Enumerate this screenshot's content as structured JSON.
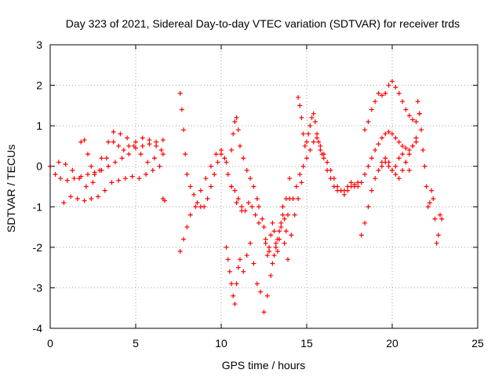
{
  "chart_data": {
    "type": "scatter",
    "title": "Day 323 of 2021, Sidereal Day-to-day VTEC variation (SDTVAR) for receiver trds",
    "xlabel": "GPS time / hours",
    "ylabel": "SDTVAR / TECUs",
    "xlim": [
      0,
      25
    ],
    "ylim": [
      -4,
      3
    ],
    "xticks": [
      0,
      5,
      10,
      15,
      20,
      25
    ],
    "yticks": [
      -4,
      -3,
      -2,
      -1,
      0,
      1,
      2,
      3
    ],
    "grid": true,
    "marker": "+",
    "color": "#ff0000",
    "series": [
      {
        "name": "SDTVAR",
        "x": [
          0.0,
          0.3,
          0.6,
          1.0,
          1.4,
          1.8,
          2.2,
          2.6,
          3.0,
          3.4,
          3.8,
          4.2,
          4.6,
          5.0,
          5.4,
          5.8,
          6.2,
          6.6,
          0.5,
          0.9,
          1.3,
          1.7,
          2.1,
          2.5,
          2.9,
          3.3,
          3.7,
          4.1,
          4.5,
          4.9,
          5.3,
          5.7,
          6.1,
          6.5,
          0.8,
          1.2,
          1.6,
          2.0,
          2.4,
          2.8,
          3.2,
          3.6,
          4.0,
          4.4,
          4.8,
          5.2,
          5.6,
          6.0,
          6.4,
          1.8,
          2.0,
          2.2,
          2.4,
          2.6,
          3.0,
          3.4,
          3.7,
          4.0,
          4.3,
          4.6,
          5.0,
          5.4,
          5.8,
          6.2,
          6.6,
          6.6,
          6.7,
          7.6,
          7.7,
          7.8,
          7.9,
          8.0,
          8.2,
          8.4,
          8.6,
          8.8,
          9.0,
          9.2,
          9.4,
          9.6,
          9.8,
          10.0,
          10.2,
          10.4,
          10.6,
          10.8,
          11.0,
          11.2,
          11.4,
          11.6,
          11.8,
          12.0,
          12.2,
          7.6,
          7.8,
          8.0,
          8.2,
          8.5,
          8.8,
          9.1,
          9.4,
          9.7,
          10.0,
          10.3,
          10.6,
          10.9,
          11.2,
          10.6,
          10.7,
          10.8,
          10.9,
          11.0,
          11.1,
          11.3,
          11.5,
          11.7,
          11.9,
          12.1,
          10.3,
          10.4,
          10.5,
          10.6,
          10.7,
          10.8,
          10.9,
          11.0,
          11.1,
          11.3,
          11.5,
          11.7,
          11.9,
          12.1,
          12.3,
          12.5,
          12.7,
          12.9,
          13.1,
          13.3,
          13.5,
          13.7,
          13.9,
          14.1,
          14.3,
          14.5,
          14.7,
          12.5,
          12.6,
          12.7,
          12.8,
          12.9,
          13.0,
          13.1,
          13.2,
          13.3,
          13.4,
          13.5,
          13.6,
          13.7,
          13.8,
          13.9,
          14.0,
          12.2,
          12.4,
          12.6,
          12.8,
          13.0,
          13.2,
          13.4,
          13.6,
          13.8,
          14.0,
          14.5,
          14.6,
          14.7,
          14.8,
          14.9,
          15.0,
          15.1,
          15.2,
          15.3,
          15.4,
          15.5,
          15.6,
          15.7,
          15.8,
          15.9,
          16.0,
          16.2,
          16.4,
          16.6,
          16.8,
          17.0,
          14.2,
          14.4,
          14.6,
          14.8,
          15.0,
          15.2,
          15.4,
          15.6,
          15.8,
          16.0,
          16.2,
          16.4,
          16.6,
          16.8,
          17.0,
          17.2,
          17.4,
          17.6,
          17.8,
          18.0,
          17.2,
          17.4,
          17.6,
          17.8,
          18.0,
          18.2,
          18.4,
          18.6,
          18.8,
          19.0,
          19.2,
          19.4,
          19.6,
          19.8,
          20.0,
          20.2,
          20.4,
          20.6,
          20.8,
          21.0,
          21.2,
          21.4,
          18.2,
          18.4,
          18.6,
          18.8,
          19.0,
          19.2,
          19.4,
          19.6,
          19.8,
          20.0,
          20.2,
          20.4,
          20.6,
          20.8,
          21.0,
          21.2,
          21.4,
          18.4,
          18.6,
          18.8,
          19.0,
          19.2,
          19.4,
          19.6,
          19.8,
          20.0,
          20.2,
          20.4,
          20.6,
          20.8,
          21.0,
          21.2,
          21.4,
          21.6,
          19.4,
          19.6,
          19.8,
          20.0,
          20.2,
          20.4,
          20.6,
          20.8,
          21.0,
          21.5,
          21.6,
          21.7,
          21.8,
          21.9,
          22.0,
          22.1,
          22.2,
          22.3,
          22.4,
          22.5,
          22.6,
          22.7,
          22.8,
          22.9
        ],
        "y": [
          0.0,
          -0.2,
          -0.3,
          -0.35,
          -0.3,
          -0.25,
          -0.2,
          -0.15,
          -0.1,
          0.0,
          0.1,
          0.2,
          0.3,
          0.45,
          0.5,
          0.55,
          0.6,
          0.65,
          0.1,
          0.05,
          -0.1,
          -0.3,
          -0.5,
          -0.4,
          -0.1,
          0.2,
          0.6,
          0.8,
          0.7,
          0.5,
          0.3,
          0.1,
          0.2,
          0.4,
          -0.9,
          -0.75,
          -0.8,
          -0.85,
          -0.8,
          -0.75,
          -0.6,
          -0.4,
          -0.35,
          -0.3,
          -0.25,
          -0.3,
          -0.2,
          -0.1,
          0.0,
          0.6,
          0.65,
          0.3,
          0.0,
          -0.2,
          0.2,
          0.6,
          0.85,
          0.5,
          0.4,
          0.5,
          0.6,
          0.7,
          0.65,
          0.5,
          0.3,
          -0.8,
          -0.85,
          1.8,
          1.4,
          0.9,
          0.3,
          -0.2,
          -0.5,
          -0.7,
          -0.9,
          -1.0,
          -1.0,
          -0.8,
          -0.5,
          -0.2,
          0.1,
          0.3,
          0.2,
          -0.2,
          -0.5,
          -0.6,
          -0.8,
          -1.0,
          -1.1,
          -0.9,
          -1.0,
          -1.2,
          -1.4,
          -2.1,
          -1.8,
          -1.5,
          -1.2,
          -1.0,
          -0.6,
          -0.3,
          0.0,
          0.3,
          0.4,
          0.1,
          -0.5,
          -0.9,
          -1.1,
          0.4,
          0.8,
          1.1,
          1.2,
          0.9,
          0.5,
          0.2,
          -0.1,
          -0.3,
          -0.5,
          -0.8,
          -2.0,
          -2.3,
          -2.6,
          -2.9,
          -3.2,
          -3.4,
          -2.9,
          -2.5,
          -2.3,
          -2.6,
          -2.2,
          -1.9,
          -2.4,
          -2.9,
          -3.1,
          -3.6,
          -3.2,
          -2.7,
          -2.2,
          -1.8,
          -1.5,
          -1.9,
          -2.3,
          -1.7,
          -1.2,
          -0.8,
          -0.4,
          -1.5,
          -1.9,
          -2.2,
          -2.0,
          -1.7,
          -1.4,
          -1.6,
          -1.9,
          -2.1,
          -1.8,
          -1.4,
          -1.0,
          -1.3,
          -1.6,
          -1.2,
          -0.8,
          -1.0,
          -1.3,
          -1.8,
          -2.1,
          -2.4,
          -2.0,
          -1.6,
          -1.2,
          -0.8,
          -0.3,
          1.7,
          1.5,
          1.2,
          0.8,
          0.5,
          0.6,
          0.8,
          1.0,
          1.2,
          1.3,
          1.1,
          0.8,
          0.6,
          0.4,
          0.3,
          0.2,
          -0.1,
          -0.3,
          -0.5,
          -0.6,
          -0.6,
          -0.8,
          -0.5,
          -0.2,
          0.0,
          0.2,
          0.4,
          0.6,
          0.7,
          0.5,
          0.3,
          0.1,
          -0.1,
          -0.3,
          -0.5,
          -0.6,
          -0.7,
          -0.6,
          -0.5,
          -0.5,
          -0.4,
          -0.6,
          -0.5,
          -0.4,
          -0.45,
          -0.5,
          -0.4,
          -0.2,
          0.0,
          0.2,
          0.4,
          0.55,
          0.7,
          0.8,
          0.85,
          0.8,
          0.7,
          0.6,
          0.5,
          0.45,
          0.4,
          0.5,
          0.7,
          -1.7,
          -1.4,
          -1.0,
          -0.6,
          -0.3,
          -0.1,
          0.1,
          0.2,
          0.1,
          -0.1,
          -0.2,
          -0.3,
          -0.1,
          0.1,
          0.3,
          0.5,
          0.6,
          0.9,
          1.1,
          1.4,
          1.6,
          1.8,
          1.75,
          1.8,
          2.0,
          2.1,
          1.95,
          1.8,
          1.6,
          1.4,
          1.25,
          1.15,
          1.1,
          1.3,
          0.0,
          0.1,
          0.0,
          -0.1,
          0.0,
          0.2,
          0.3,
          0.1,
          -0.1,
          1.6,
          1.3,
          0.9,
          0.4,
          0.0,
          -0.5,
          -1.0,
          -0.9,
          -0.6,
          -0.8,
          -1.3,
          -1.9,
          -1.7,
          -1.2,
          -1.3
        ]
      }
    ]
  }
}
